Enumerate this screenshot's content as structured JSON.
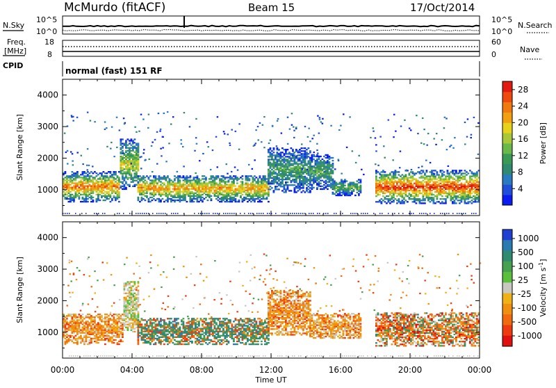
{
  "header": {
    "station": "McMurdo (fitACF)",
    "beam": "Beam 15",
    "date": "17/Oct/2014"
  },
  "side_labels": {
    "nsky": "N.Sky",
    "freq_line1": "Freq.",
    "freq_line2": "[MHz]",
    "cpid": "CPID",
    "nsearch": "N.Search",
    "nave": "Nave",
    "nsearch_ticks": [
      "10^5",
      "10^0"
    ],
    "nsky_ticks": [
      "10^5",
      "10^0"
    ],
    "freq_ticks": [
      "18",
      "8"
    ],
    "nave_ticks": [
      "60",
      "0"
    ]
  },
  "cpid_text": "normal (fast) 151 RF",
  "chart_data": [
    {
      "type": "heatmap",
      "name": "Power",
      "xlabel": "Time UT",
      "ylabel": "Slant Range [km]",
      "x_ticks": [
        "00:00",
        "04:00",
        "08:00",
        "12:00",
        "16:00",
        "20:00",
        "00:00"
      ],
      "xlim_hours": [
        0,
        24
      ],
      "ylim": [
        180,
        4500
      ],
      "y_ticks": [
        1000,
        2000,
        3000,
        4000
      ],
      "colorbar": {
        "label": "Power [dB]",
        "ticks": [
          4,
          8,
          12,
          16,
          20,
          24,
          28
        ],
        "range": [
          0,
          30
        ],
        "colors": [
          "#0b1cf0",
          "#1f4fd8",
          "#2a7ac0",
          "#2f8a6f",
          "#3a9a55",
          "#6ab84a",
          "#a8c83a",
          "#e6d21a",
          "#f0a010",
          "#f07a10",
          "#ee4a10",
          "#e01a10"
        ]
      },
      "regions": [
        {
          "t": [
            0.0,
            3.3
          ],
          "r": [
            600,
            1550
          ],
          "core": 19
        },
        {
          "t": [
            3.3,
            4.3
          ],
          "r": [
            1000,
            2600
          ],
          "core": 13
        },
        {
          "t": [
            4.3,
            11.8
          ],
          "r": [
            600,
            1450
          ],
          "core": 17
        },
        {
          "t": [
            11.8,
            14.2
          ],
          "r": [
            900,
            2300
          ],
          "core": 8
        },
        {
          "t": [
            14.2,
            15.5
          ],
          "r": [
            1000,
            2100
          ],
          "core": 8
        },
        {
          "t": [
            15.5,
            17.2
          ],
          "r": [
            800,
            1300
          ],
          "core": 10
        },
        {
          "t": [
            18.0,
            24.0
          ],
          "r": [
            550,
            1600
          ],
          "core": 22
        }
      ]
    },
    {
      "type": "heatmap",
      "name": "Velocity",
      "xlabel": "Time UT",
      "ylabel": "Slant Range [km]",
      "x_ticks": [
        "00:00",
        "04:00",
        "08:00",
        "12:00",
        "16:00",
        "20:00",
        "00:00"
      ],
      "xlim_hours": [
        0,
        24
      ],
      "ylim": [
        180,
        4500
      ],
      "y_ticks": [
        1000,
        2000,
        3000,
        4000
      ],
      "colorbar": {
        "label": "Velocity [m s^-1]",
        "ticks": [
          "1000",
          "500",
          "100",
          "25",
          "-25",
          "-100",
          "-500",
          "-1000"
        ],
        "colors": [
          "#1f3fd0",
          "#2a7ab0",
          "#2f8a6f",
          "#45a050",
          "#5abf3a",
          "#c8c8c0",
          "#f0b018",
          "#f09010",
          "#f06a10",
          "#ee3a10",
          "#e01010"
        ]
      },
      "regions": [
        {
          "t": [
            0.0,
            3.5
          ],
          "r": [
            600,
            1550
          ],
          "mood": "orange"
        },
        {
          "t": [
            3.5,
            4.3
          ],
          "r": [
            1000,
            2600
          ],
          "mood": "grey"
        },
        {
          "t": [
            4.3,
            11.8
          ],
          "r": [
            600,
            1450
          ],
          "mood": "green"
        },
        {
          "t": [
            11.8,
            14.2
          ],
          "r": [
            900,
            2300
          ],
          "mood": "orange"
        },
        {
          "t": [
            14.2,
            17.2
          ],
          "r": [
            800,
            1600
          ],
          "mood": "orange"
        },
        {
          "t": [
            18.0,
            24.0
          ],
          "r": [
            550,
            1600
          ],
          "mood": "mixed"
        }
      ]
    }
  ]
}
